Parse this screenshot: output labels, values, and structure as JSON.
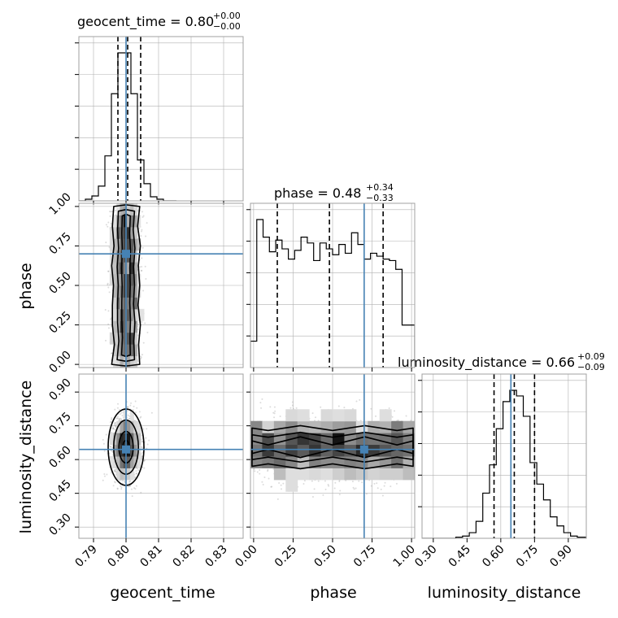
{
  "chart_data": {
    "type": "corner",
    "parameters": [
      "geocent_time",
      "phase",
      "luminosity_distance"
    ],
    "axis_labels": [
      "geocent_time",
      "phase",
      "luminosity_distance"
    ],
    "ranges": {
      "geocent_time": [
        0.7855,
        0.836
      ],
      "phase": [
        -0.02,
        1.02
      ],
      "luminosity_distance": [
        0.25,
        0.98
      ]
    },
    "ticks": {
      "geocent_time": {
        "values": [
          0.79,
          0.8,
          0.81,
          0.82,
          0.83
        ],
        "labels": [
          "0.79",
          "0.80",
          "0.81",
          "0.82",
          "0.83"
        ]
      },
      "phase": {
        "values": [
          0.0,
          0.25,
          0.5,
          0.75,
          1.0
        ],
        "labels": [
          "0.00",
          "0.25",
          "0.50",
          "0.75",
          "1.00"
        ]
      },
      "luminosity_distance": {
        "values": [
          0.3,
          0.45,
          0.6,
          0.75,
          0.9
        ],
        "labels": [
          "0.30",
          "0.45",
          "0.60",
          "0.75",
          "0.90"
        ]
      }
    },
    "injection": {
      "geocent_time": 0.8,
      "phase": 0.7,
      "luminosity_distance": 0.645
    },
    "titles": [
      {
        "text": "geocent_time = 0.80",
        "plus": "+0.00",
        "minus": "−0.00"
      },
      {
        "text": "phase = 0.48",
        "plus": "+0.34",
        "minus": "−0.33"
      },
      {
        "text": "luminosity_distance = 0.66",
        "plus": "+0.09",
        "minus": "−0.09"
      }
    ],
    "quantiles": {
      "geocent_time": [
        0.7975,
        0.8005,
        0.8045
      ],
      "phase": [
        0.15,
        0.48,
        0.82
      ],
      "luminosity_distance": [
        0.57,
        0.66,
        0.75
      ]
    },
    "histograms": {
      "geocent_time": {
        "edges": [
          0.7855,
          0.7875,
          0.7895,
          0.7915,
          0.7935,
          0.7955,
          0.7975,
          0.7995,
          0.8015,
          0.8035,
          0.8055,
          0.8075,
          0.8095,
          0.8115,
          0.8135,
          0.8155
        ],
        "counts": [
          0,
          2,
          6,
          18,
          55,
          131,
          181,
          181,
          131,
          50,
          21,
          5,
          2,
          0,
          0
        ]
      },
      "phase": {
        "edges": [
          -0.02,
          0.02,
          0.06,
          0.1,
          0.14,
          0.18,
          0.22,
          0.26,
          0.3,
          0.34,
          0.38,
          0.42,
          0.46,
          0.5,
          0.54,
          0.58,
          0.62,
          0.66,
          0.7,
          0.74,
          0.78,
          0.82,
          0.86,
          0.9,
          0.94,
          0.98,
          1.02
        ],
        "counts": [
          18,
          101,
          89,
          79,
          87,
          81,
          74,
          80,
          89,
          85,
          73,
          85,
          81,
          77,
          84,
          78,
          92,
          84,
          74,
          78,
          76,
          74,
          73,
          67,
          29,
          29
        ]
      },
      "luminosity_distance": {
        "edges": [
          0.25,
          0.28,
          0.31,
          0.34,
          0.37,
          0.4,
          0.43,
          0.46,
          0.49,
          0.52,
          0.55,
          0.58,
          0.61,
          0.64,
          0.67,
          0.7,
          0.73,
          0.76,
          0.79,
          0.82,
          0.85,
          0.88,
          0.91,
          0.94,
          0.98
        ],
        "counts": [
          0,
          0,
          0,
          0,
          0,
          1,
          2,
          5,
          15,
          40,
          65,
          97,
          121,
          131,
          126,
          108,
          67,
          48,
          34,
          19,
          11,
          5,
          2,
          1
        ]
      }
    },
    "density": {
      "phase_vs_geocent_time": {
        "x_center": 0.8,
        "x_sigma": 0.0022,
        "y_range": [
          0.02,
          0.98
        ],
        "contour_x_halfwidths": [
          0.0013,
          0.0026,
          0.0042
        ],
        "density_peaks_y": [
          0.7,
          0.4,
          0.12
        ]
      },
      "luminosity_distance_vs_geocent_time": {
        "x_center": 0.8,
        "x_sigma": 0.0022,
        "y_center": 0.655,
        "y_sigma": 0.07
      },
      "luminosity_distance_vs_phase": {
        "y_center": 0.655,
        "y_sigma": 0.07,
        "x_range": [
          0.0,
          1.0
        ]
      }
    },
    "colors": {
      "line": "#000000",
      "injection": "#4682b4",
      "grid": "#b0b0b0",
      "frame": "#a0a0a0"
    },
    "grid": true
  }
}
